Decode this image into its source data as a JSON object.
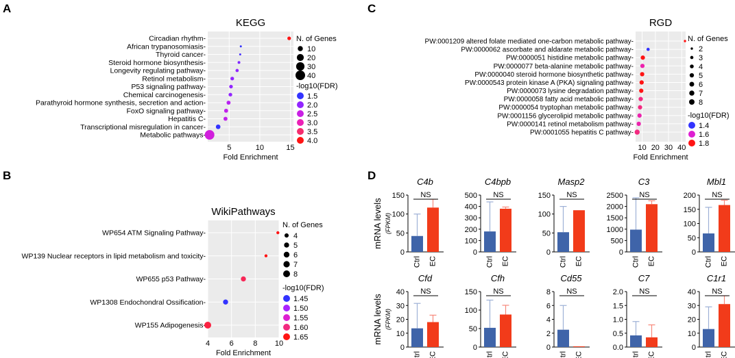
{
  "chart_data": [
    {
      "panel": "A",
      "type": "scatter",
      "title": "KEGG",
      "xlabel": "Fold Enrichment",
      "xlim": [
        1.5,
        15.5
      ],
      "xticks": [
        5,
        10,
        15
      ],
      "categories": [
        "Circadian rhythm",
        "African trypanosomiasis",
        "Thyroid cancer",
        "Steroid hormone biosynthesis",
        "Longevity regulating pathway",
        "Retinol metabolism",
        "P53 signaling pathway",
        "Chemical carcinogenesis",
        "Parathyroid hormone synthesis, secretion and action",
        "FoxO signaling pathway",
        "Hepatitis C",
        "Transcriptional misregulation in cancer",
        "Metabolic pathways"
      ],
      "fold": [
        14.8,
        6.9,
        6.8,
        6.6,
        6.3,
        5.5,
        5.3,
        5.2,
        4.9,
        4.5,
        4.4,
        3.2,
        1.8
      ],
      "genes": [
        5,
        2,
        2,
        3,
        4,
        5,
        5,
        5,
        6,
        6,
        6,
        8,
        40
      ],
      "neglog10fdr": [
        4.0,
        1.5,
        1.6,
        1.9,
        2.0,
        2.0,
        2.0,
        2.0,
        2.3,
        2.4,
        2.4,
        1.3,
        2.6
      ],
      "size_legend": {
        "title": "N. of Genes",
        "labels": [
          "10",
          "20",
          "30",
          "40"
        ],
        "values": [
          10,
          20,
          30,
          40
        ]
      },
      "color_legend": {
        "title": "-log10(FDR)",
        "labels": [
          "1.5",
          "2.0",
          "2.5",
          "3.0",
          "3.5",
          "4.0"
        ],
        "values": [
          1.5,
          2.0,
          2.5,
          3.0,
          3.5,
          4.0
        ]
      }
    },
    {
      "panel": "B",
      "type": "scatter",
      "title": "WikiPathways",
      "xlabel": "Fold Enrichment",
      "xlim": [
        4,
        10
      ],
      "xticks": [
        4,
        6,
        8,
        10
      ],
      "categories": [
        "WP654 ATM Signaling Pathway",
        "WP139 Nuclear receptors in lipid metabolism and toxicity",
        "WP655 p53 Pathway",
        "WP1308 Endochondral Ossification",
        "WP155 Adipogenesis"
      ],
      "fold": [
        9.9,
        8.9,
        7.0,
        5.5,
        4.0
      ],
      "genes": [
        3,
        3,
        5,
        5,
        8
      ],
      "neglog10fdr": [
        1.65,
        1.65,
        1.62,
        1.45,
        1.63
      ],
      "size_legend": {
        "title": "N. of Genes",
        "labels": [
          "4",
          "5",
          "6",
          "7",
          "8"
        ],
        "values": [
          4,
          5,
          6,
          7,
          8
        ]
      },
      "color_legend": {
        "title": "-log10(FDR)",
        "labels": [
          "1.45",
          "1.50",
          "1.55",
          "1.60",
          "1.65"
        ],
        "values": [
          1.45,
          1.5,
          1.55,
          1.6,
          1.65
        ]
      }
    },
    {
      "panel": "C",
      "type": "scatter",
      "title": "RGD",
      "xlabel": "Fold Enrichment",
      "xlim": [
        5,
        43
      ],
      "xticks": [
        10,
        20,
        30,
        40
      ],
      "categories": [
        "PW:0001209 altered folate mediated one-carbon metabolic pathway",
        "PW:0000062 ascorbate and aldarate metabolic pathway",
        "PW:0000051 histidine metabolic pathway",
        "PW:0000077 beta-alanine metabolic pathway",
        "PW:0000040 steroid hormone biosynthetic pathway",
        "PW:0000543 protein kinase A (PKA) signaling pathway",
        "PW:0000073 lysine degradation pathway",
        "PW:0000058 fatty acid metabolic pathway",
        "PW:0000054 tryptophan metabolic pathway",
        "PW:0001156 glycerolipid metabolic pathway",
        "PW:0000141 retinol metabolism pathway",
        "PW:0001055 hepatitis C pathway"
      ],
      "fold": [
        42.5,
        14.5,
        10.5,
        10.2,
        10.0,
        9.6,
        9.3,
        8.9,
        8.4,
        8.0,
        7.4,
        6.2
      ],
      "genes": [
        2,
        3,
        5,
        5,
        5,
        5,
        5,
        5,
        5,
        5,
        5,
        7
      ],
      "neglog10fdr": [
        1.8,
        1.4,
        1.8,
        1.65,
        1.8,
        1.8,
        1.8,
        1.7,
        1.7,
        1.65,
        1.65,
        1.7
      ],
      "size_legend": {
        "title": "N. of Genes",
        "labels": [
          "2",
          "3",
          "4",
          "5",
          "6",
          "7",
          "8"
        ],
        "values": [
          2,
          3,
          4,
          5,
          6,
          7,
          8
        ]
      },
      "color_legend": {
        "title": "-log10(FDR)",
        "labels": [
          "1.4",
          "1.6",
          "1.8"
        ],
        "values": [
          1.4,
          1.6,
          1.8
        ]
      }
    },
    {
      "panel": "D",
      "type": "bar",
      "ylabel": "mRNA levels",
      "ylabel_unit": "(FPKM)",
      "categories": [
        "Ctrl",
        "EC"
      ],
      "significance": "NS",
      "subplots": [
        {
          "gene": "C4b",
          "values": [
            42,
            117
          ],
          "errors": [
            58,
            22
          ],
          "yticks": [
            "0",
            "50",
            "100",
            "150"
          ],
          "ymax": 150
        },
        {
          "gene": "C4bpb",
          "values": [
            180,
            380
          ],
          "errors": [
            260,
            15
          ],
          "yticks": [
            "0",
            "100",
            "200",
            "300",
            "400",
            "500"
          ],
          "ymax": 500
        },
        {
          "gene": "Masp2",
          "values": [
            52,
            110
          ],
          "errors": [
            68,
            0
          ],
          "yticks": [
            "0",
            "50",
            "100",
            "150"
          ],
          "ymax": 150
        },
        {
          "gene": "C3",
          "values": [
            980,
            2100
          ],
          "errors": [
            1400,
            150
          ],
          "yticks": [
            "0",
            "500",
            "1000",
            "1500",
            "2000",
            "2500"
          ],
          "ymax": 2500
        },
        {
          "gene": "Mbl1",
          "values": [
            65,
            165
          ],
          "errors": [
            92,
            17
          ],
          "yticks": [
            "0",
            "50",
            "100",
            "150",
            "200"
          ],
          "ymax": 200
        },
        {
          "gene": "Cfd",
          "values": [
            13.5,
            18
          ],
          "errors": [
            18,
            5
          ],
          "yticks": [
            "0",
            "10",
            "20",
            "30",
            "40"
          ],
          "ymax": 40
        },
        {
          "gene": "Cfh",
          "values": [
            52,
            88
          ],
          "errors": [
            75,
            25
          ],
          "yticks": [
            "0",
            "50",
            "100",
            "150"
          ],
          "ymax": 150
        },
        {
          "gene": "Cd55",
          "values": [
            2.5,
            0.1
          ],
          "errors": [
            3.5,
            0
          ],
          "yticks": [
            "0",
            "2",
            "4",
            "6",
            "8"
          ],
          "ymax": 8
        },
        {
          "gene": "C7",
          "values": [
            0.42,
            0.35
          ],
          "errors": [
            0.5,
            0.45
          ],
          "yticks": [
            "0.0",
            "0.5",
            "1.0",
            "1.5",
            "2.0"
          ],
          "ymax": 2.0
        },
        {
          "gene": "C1r1",
          "values": [
            13,
            31
          ],
          "errors": [
            16,
            6
          ],
          "yticks": [
            "0",
            "10",
            "20",
            "30",
            "40"
          ],
          "ymax": 40
        }
      ]
    }
  ],
  "panel_labels": {
    "a": "A",
    "b": "B",
    "c": "C",
    "d": "D"
  },
  "colors": {
    "ctrl_bar": "#3F64A9",
    "ec_bar": "#F23B1A",
    "ctrl_err": "#9DB0D6",
    "ec_err": "#F7887A",
    "plot_bg": "#EBEBEB",
    "grid": "#FFFFFF"
  }
}
